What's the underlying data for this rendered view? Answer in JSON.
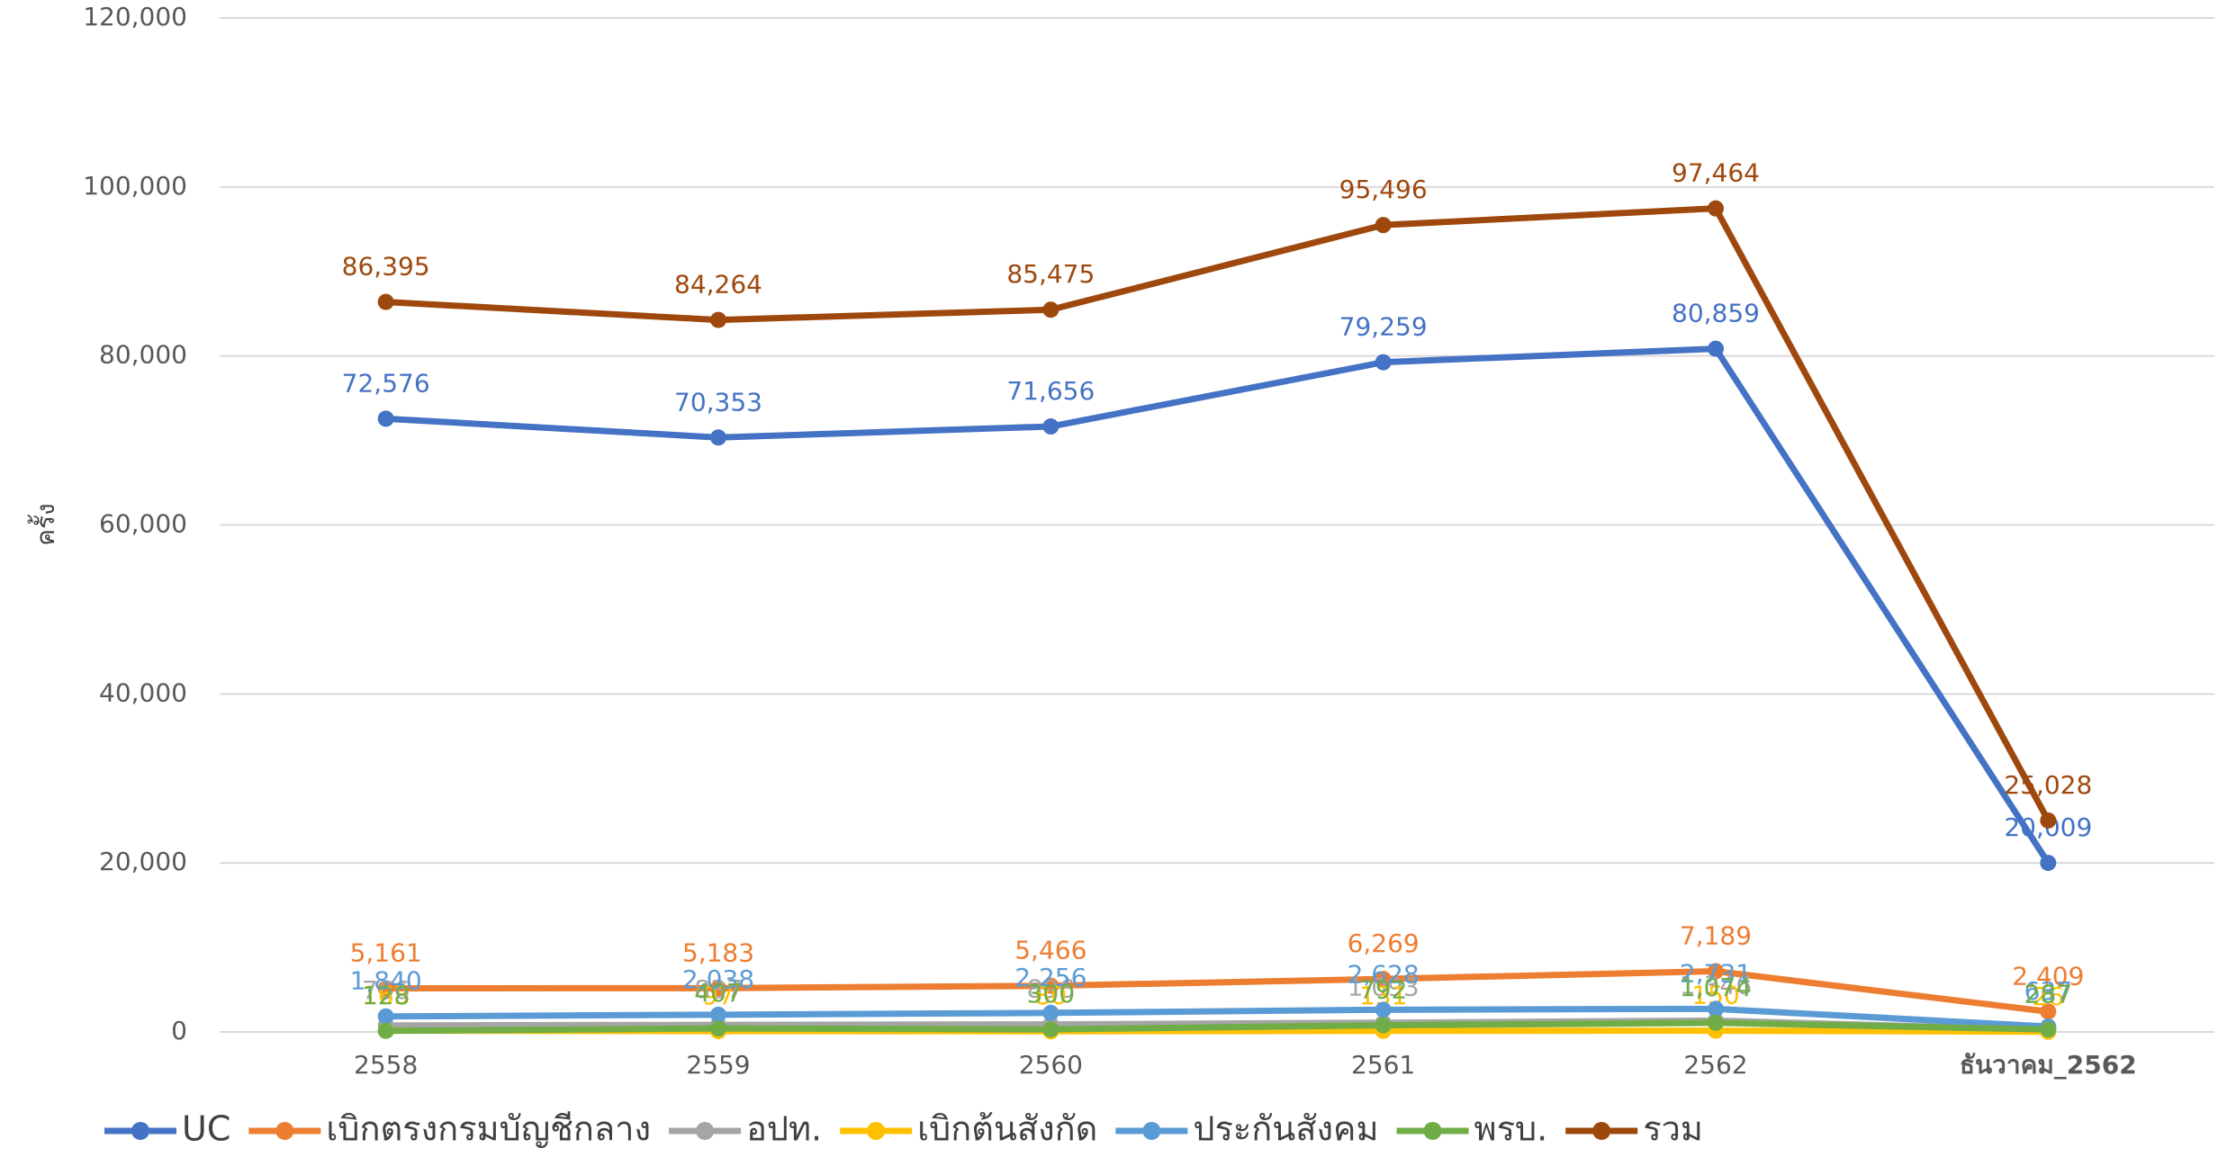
{
  "chart_data": {
    "type": "line",
    "y_label": "ครั้ง",
    "categories": [
      "2558",
      "2559",
      "2560",
      "2561",
      "2562",
      "ธันวาคม_2562"
    ],
    "ylim": [
      0,
      120000
    ],
    "yticks": [
      0,
      {
        "value": 20000,
        "label": "20,000"
      },
      {
        "value": 40000,
        "label": "40,000"
      },
      {
        "value": 60000,
        "label": "60,000"
      },
      {
        "value": 80000,
        "label": "80,000"
      },
      {
        "value": 100000,
        "label": "100,000"
      },
      {
        "value": 120000,
        "label": "120,000"
      }
    ],
    "grid": true,
    "legend": "bottom",
    "series": [
      {
        "name": "UC",
        "color": "#4472c4",
        "values": [
          72576,
          70353,
          71656,
          79259,
          80859,
          20009
        ],
        "value_labels": [
          "72,576",
          "70,353",
          "71,656",
          "79,259",
          "80,859",
          "20,009"
        ]
      },
      {
        "name": "เบิกตรงกรมบัญชีกลาง",
        "color": "#ed7d31",
        "values": [
          5161,
          5183,
          5466,
          6269,
          7189,
          2409
        ],
        "value_labels": [
          "5,161",
          "5,183",
          "5,466",
          "6,269",
          "7,189",
          "2,409"
        ]
      },
      {
        "name": "อปท.",
        "color": "#a5a5a5",
        "values": [
          766,
          837,
          896,
          1093,
          1346,
          267
        ],
        "value_labels": [
          "766",
          "837",
          "896",
          "1,093",
          "1,346",
          "267"
        ]
      },
      {
        "name": "เบิกต้นสังกัด",
        "color": "#ffc000",
        "values": [
          163,
          97,
          80,
          131,
          150,
          26
        ],
        "value_labels": [
          "163",
          "97",
          "80",
          "131",
          "150",
          "26"
        ]
      },
      {
        "name": "ประกันสังคม",
        "color": "#5b9bd5",
        "values": [
          1840,
          2038,
          2256,
          2628,
          2731,
          637
        ],
        "value_labels": [
          "1,840",
          "2,038",
          "2,256",
          "2,628",
          "2,731",
          "637"
        ]
      },
      {
        "name": "พรบ.",
        "color": "#70ad47",
        "values": [
          128,
          407,
          300,
          792,
          1074,
          287
        ],
        "value_labels": [
          "128",
          "407",
          "300",
          "792",
          "1,074",
          "287"
        ]
      },
      {
        "name": "รวม",
        "color": "#9e480e",
        "values": [
          86395,
          84264,
          85475,
          95496,
          97464,
          25028
        ],
        "value_labels": [
          "86,395",
          "84,264",
          "85,475",
          "95,496",
          "97,464",
          "25,028"
        ]
      }
    ]
  }
}
